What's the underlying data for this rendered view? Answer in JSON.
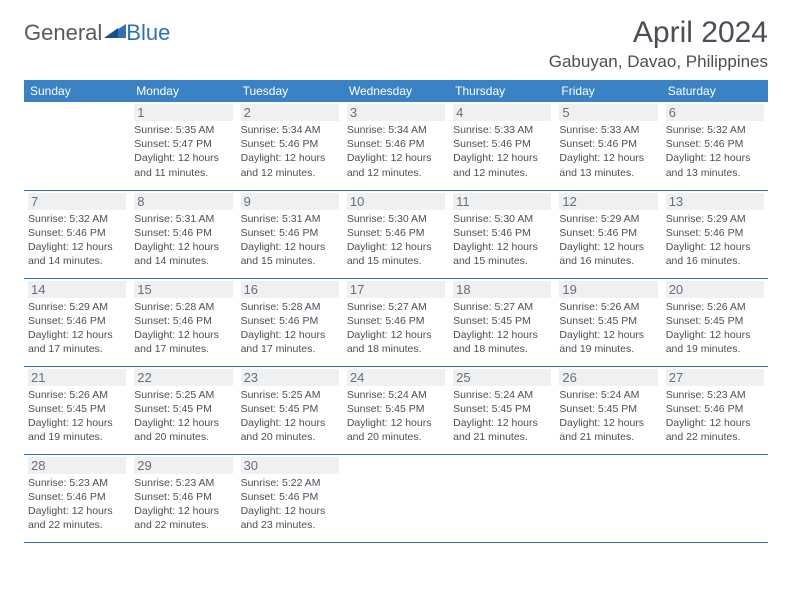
{
  "logo": {
    "general": "General",
    "blue": "Blue"
  },
  "title": "April 2024",
  "location": "Gabuyan, Davao, Philippines",
  "colors": {
    "header_bg": "#3b82c4",
    "header_text": "#ffffff",
    "border": "#2f6ea8",
    "daynum_bg": "#eef0f2",
    "daynum_text": "#6a6f78",
    "body_text": "#4a4f57",
    "logo_gray": "#555a61",
    "logo_blue": "#2f71b8",
    "page_bg": "#ffffff"
  },
  "weekdays": [
    "Sunday",
    "Monday",
    "Tuesday",
    "Wednesday",
    "Thursday",
    "Friday",
    "Saturday"
  ],
  "start_offset": 1,
  "days": [
    {
      "n": "1",
      "sunrise": "5:35 AM",
      "sunset": "5:47 PM",
      "daylight": "12 hours and 11 minutes."
    },
    {
      "n": "2",
      "sunrise": "5:34 AM",
      "sunset": "5:46 PM",
      "daylight": "12 hours and 12 minutes."
    },
    {
      "n": "3",
      "sunrise": "5:34 AM",
      "sunset": "5:46 PM",
      "daylight": "12 hours and 12 minutes."
    },
    {
      "n": "4",
      "sunrise": "5:33 AM",
      "sunset": "5:46 PM",
      "daylight": "12 hours and 12 minutes."
    },
    {
      "n": "5",
      "sunrise": "5:33 AM",
      "sunset": "5:46 PM",
      "daylight": "12 hours and 13 minutes."
    },
    {
      "n": "6",
      "sunrise": "5:32 AM",
      "sunset": "5:46 PM",
      "daylight": "12 hours and 13 minutes."
    },
    {
      "n": "7",
      "sunrise": "5:32 AM",
      "sunset": "5:46 PM",
      "daylight": "12 hours and 14 minutes."
    },
    {
      "n": "8",
      "sunrise": "5:31 AM",
      "sunset": "5:46 PM",
      "daylight": "12 hours and 14 minutes."
    },
    {
      "n": "9",
      "sunrise": "5:31 AM",
      "sunset": "5:46 PM",
      "daylight": "12 hours and 15 minutes."
    },
    {
      "n": "10",
      "sunrise": "5:30 AM",
      "sunset": "5:46 PM",
      "daylight": "12 hours and 15 minutes."
    },
    {
      "n": "11",
      "sunrise": "5:30 AM",
      "sunset": "5:46 PM",
      "daylight": "12 hours and 15 minutes."
    },
    {
      "n": "12",
      "sunrise": "5:29 AM",
      "sunset": "5:46 PM",
      "daylight": "12 hours and 16 minutes."
    },
    {
      "n": "13",
      "sunrise": "5:29 AM",
      "sunset": "5:46 PM",
      "daylight": "12 hours and 16 minutes."
    },
    {
      "n": "14",
      "sunrise": "5:29 AM",
      "sunset": "5:46 PM",
      "daylight": "12 hours and 17 minutes."
    },
    {
      "n": "15",
      "sunrise": "5:28 AM",
      "sunset": "5:46 PM",
      "daylight": "12 hours and 17 minutes."
    },
    {
      "n": "16",
      "sunrise": "5:28 AM",
      "sunset": "5:46 PM",
      "daylight": "12 hours and 17 minutes."
    },
    {
      "n": "17",
      "sunrise": "5:27 AM",
      "sunset": "5:46 PM",
      "daylight": "12 hours and 18 minutes."
    },
    {
      "n": "18",
      "sunrise": "5:27 AM",
      "sunset": "5:45 PM",
      "daylight": "12 hours and 18 minutes."
    },
    {
      "n": "19",
      "sunrise": "5:26 AM",
      "sunset": "5:45 PM",
      "daylight": "12 hours and 19 minutes."
    },
    {
      "n": "20",
      "sunrise": "5:26 AM",
      "sunset": "5:45 PM",
      "daylight": "12 hours and 19 minutes."
    },
    {
      "n": "21",
      "sunrise": "5:26 AM",
      "sunset": "5:45 PM",
      "daylight": "12 hours and 19 minutes."
    },
    {
      "n": "22",
      "sunrise": "5:25 AM",
      "sunset": "5:45 PM",
      "daylight": "12 hours and 20 minutes."
    },
    {
      "n": "23",
      "sunrise": "5:25 AM",
      "sunset": "5:45 PM",
      "daylight": "12 hours and 20 minutes."
    },
    {
      "n": "24",
      "sunrise": "5:24 AM",
      "sunset": "5:45 PM",
      "daylight": "12 hours and 20 minutes."
    },
    {
      "n": "25",
      "sunrise": "5:24 AM",
      "sunset": "5:45 PM",
      "daylight": "12 hours and 21 minutes."
    },
    {
      "n": "26",
      "sunrise": "5:24 AM",
      "sunset": "5:45 PM",
      "daylight": "12 hours and 21 minutes."
    },
    {
      "n": "27",
      "sunrise": "5:23 AM",
      "sunset": "5:46 PM",
      "daylight": "12 hours and 22 minutes."
    },
    {
      "n": "28",
      "sunrise": "5:23 AM",
      "sunset": "5:46 PM",
      "daylight": "12 hours and 22 minutes."
    },
    {
      "n": "29",
      "sunrise": "5:23 AM",
      "sunset": "5:46 PM",
      "daylight": "12 hours and 22 minutes."
    },
    {
      "n": "30",
      "sunrise": "5:22 AM",
      "sunset": "5:46 PM",
      "daylight": "12 hours and 23 minutes."
    }
  ],
  "labels": {
    "sunrise": "Sunrise:",
    "sunset": "Sunset:",
    "daylight": "Daylight:"
  }
}
